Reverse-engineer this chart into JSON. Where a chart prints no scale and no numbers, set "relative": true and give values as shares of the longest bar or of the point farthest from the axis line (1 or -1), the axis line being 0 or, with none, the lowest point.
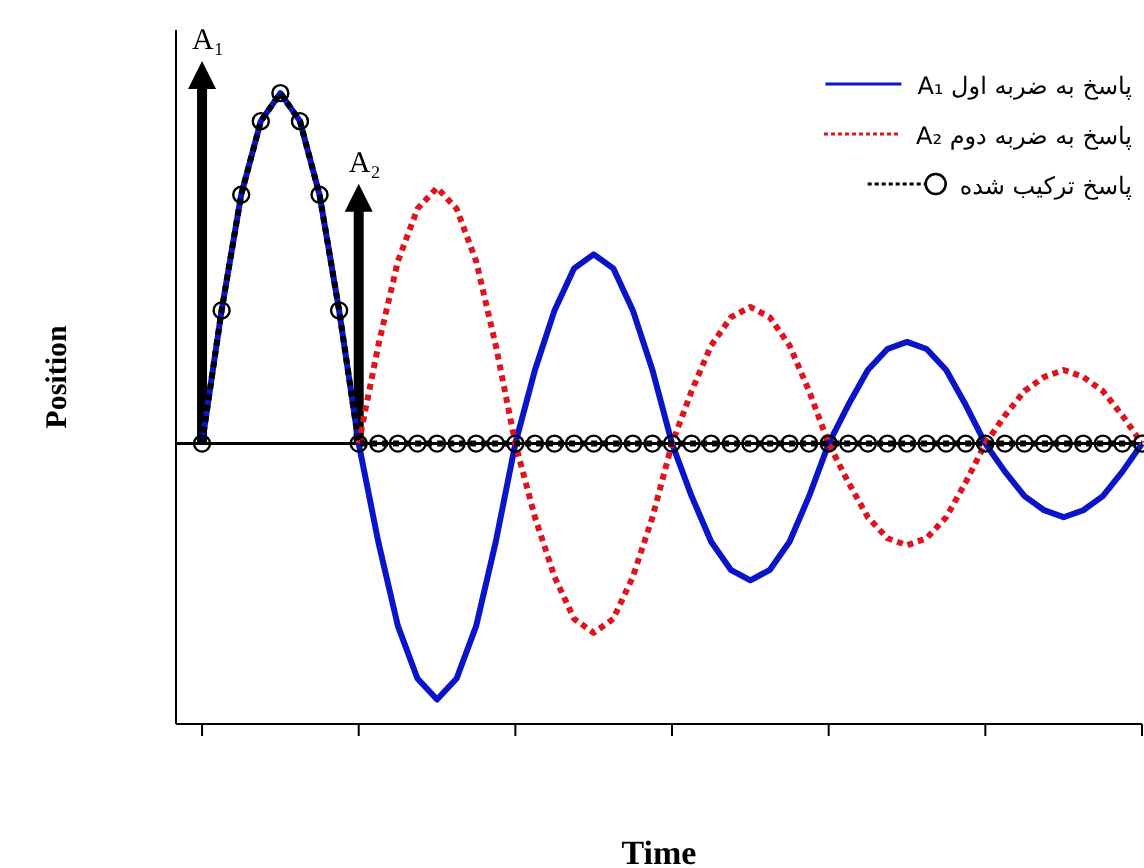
{
  "chart_data": {
    "type": "line",
    "relative": true,
    "xlabel": "Time",
    "ylabel": "Position",
    "legend": "top right",
    "categories": [
      null,
      null,
      null,
      null,
      null,
      null,
      null,
      null,
      null,
      null,
      null,
      null,
      null,
      null,
      null,
      null,
      null,
      null,
      null,
      null,
      null,
      null,
      null,
      null,
      null,
      null,
      null,
      null,
      null,
      null,
      null,
      null,
      null,
      null,
      null,
      null,
      null,
      null,
      null,
      null,
      null,
      null,
      null,
      null,
      null,
      null,
      null,
      null,
      null
    ],
    "series": [
      {
        "name": "پاسخ به ضربه اول A₁",
        "color": "#0a14c8",
        "line_style": "solid",
        "values": [
          0,
          0.38,
          0.71,
          0.92,
          1,
          0.92,
          0.71,
          0.38,
          0,
          -0.28,
          -0.52,
          -0.67,
          -0.73,
          -0.67,
          -0.52,
          -0.28,
          0,
          0.21,
          0.38,
          0.5,
          0.54,
          0.5,
          0.38,
          0.21,
          0,
          -0.15,
          -0.28,
          -0.36,
          -0.39,
          -0.36,
          -0.28,
          -0.15,
          0,
          0.11,
          0.21,
          0.27,
          0.29,
          0.27,
          0.21,
          0.11,
          0,
          -0.08,
          -0.15,
          -0.19,
          -0.21,
          -0.19,
          -0.15,
          -0.08,
          0
        ]
      },
      {
        "name": "پاسخ به ضربه دوم A₂",
        "color": "#e0141e",
        "line_style": "dotted",
        "values": [
          null,
          null,
          null,
          null,
          null,
          null,
          null,
          null,
          0,
          0.28,
          0.52,
          0.67,
          0.73,
          0.67,
          0.52,
          0.28,
          0,
          -0.21,
          -0.38,
          -0.5,
          -0.54,
          -0.5,
          -0.38,
          -0.21,
          0,
          0.15,
          0.28,
          0.36,
          0.39,
          0.36,
          0.28,
          0.15,
          0,
          -0.11,
          -0.21,
          -0.27,
          -0.29,
          -0.27,
          -0.21,
          -0.11,
          0,
          0.08,
          0.15,
          0.19,
          0.21,
          0.19,
          0.15,
          0.08,
          0
        ]
      },
      {
        "name": "پاسخ ترکیب شده",
        "color": "#000000",
        "line_style": "dotted",
        "marker": "circle",
        "values": [
          0,
          0.38,
          0.71,
          0.92,
          1,
          0.92,
          0.71,
          0.38,
          0,
          0,
          0,
          0,
          0,
          0,
          0,
          0,
          0,
          0,
          0,
          0,
          0,
          0,
          0,
          0,
          0,
          0,
          0,
          0,
          0,
          0,
          0,
          0,
          0,
          0,
          0,
          0,
          0,
          0,
          0,
          0,
          0,
          0,
          0,
          0,
          0,
          0,
          0,
          0,
          0
        ]
      }
    ],
    "annotations": [
      "A₁",
      "A₂"
    ]
  }
}
